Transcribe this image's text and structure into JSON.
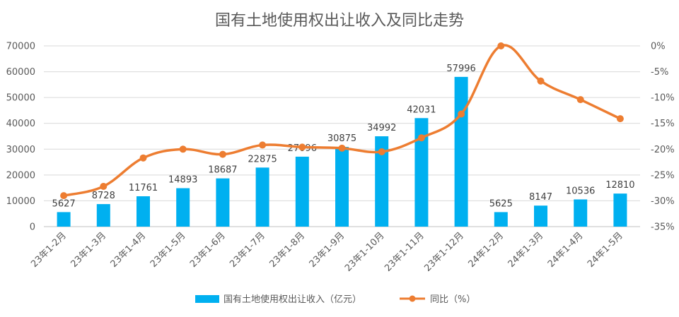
{
  "chart_data": {
    "type": "bar",
    "title": "国有土地使用权出让收入及同比走势",
    "categories": [
      "23年1-2月",
      "23年1-3月",
      "23年1-4月",
      "23年1-5月",
      "23年1-6月",
      "23年1-7月",
      "23年1-8月",
      "23年1-9月",
      "23年1-10月",
      "23年1-11月",
      "23年1-12月",
      "24年1-2月",
      "24年1-3月",
      "24年1-4月",
      "24年1-5月"
    ],
    "series": [
      {
        "name": "国有土地使用权出让收入（亿元）",
        "type": "bar",
        "axis": "left",
        "color": "#00B0F0",
        "values": [
          5627,
          8728,
          11761,
          14893,
          18687,
          22875,
          27096,
          30875,
          34992,
          42031,
          57996,
          5625,
          8147,
          10536,
          12810
        ]
      },
      {
        "name": "同比（%）",
        "type": "line",
        "axis": "right",
        "color": "#ED7D31",
        "values": [
          -29.0,
          -27.2,
          -21.7,
          -20.0,
          -21.0,
          -19.2,
          -19.6,
          -19.8,
          -20.5,
          -17.8,
          -13.2,
          0.0,
          -6.8,
          -10.4,
          -14.1
        ]
      }
    ],
    "y_left": {
      "min": 0,
      "max": 70000,
      "ticks": [
        "0",
        "10000",
        "20000",
        "30000",
        "40000",
        "50000",
        "60000",
        "70000"
      ]
    },
    "y_right": {
      "min": -35,
      "max": 0,
      "ticks": [
        "0%",
        "-5%",
        "-10%",
        "-15%",
        "-20%",
        "-25%",
        "-30%",
        "-35%"
      ]
    },
    "grid": true,
    "legend_position": "bottom"
  }
}
